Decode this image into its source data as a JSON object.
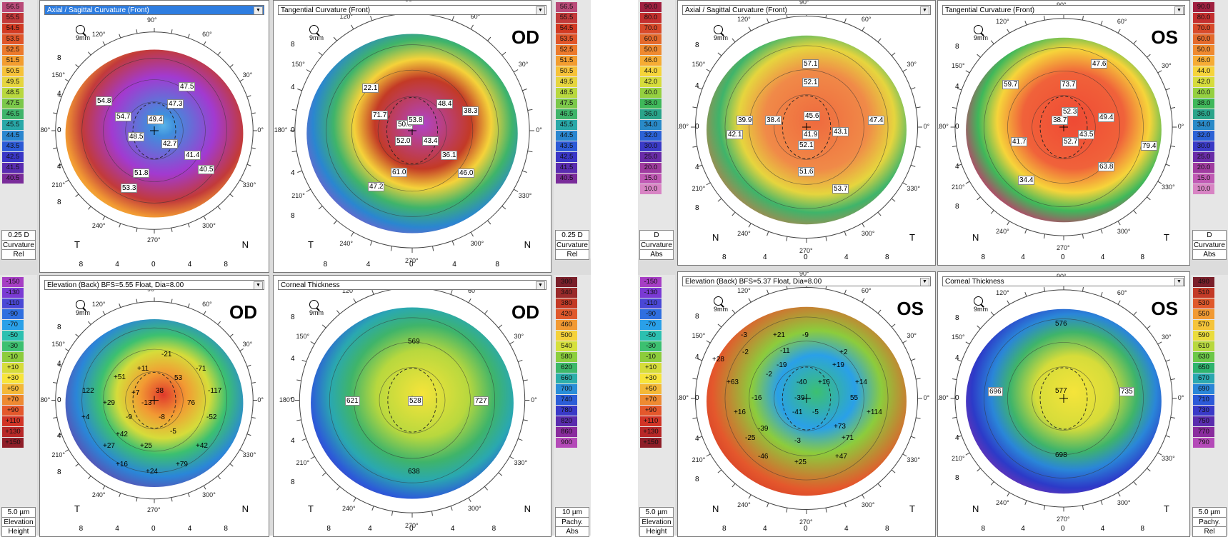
{
  "scales": {
    "curv_od": {
      "labels": [
        "56.5",
        "55.5",
        "54.5",
        "53.5",
        "52.5",
        "51.5",
        "50.5",
        "49.5",
        "48.5",
        "47.5",
        "46.5",
        "45.5",
        "44.5",
        "43.5",
        "42.5",
        "41.5",
        "40.5"
      ],
      "colors": [
        "#b94a78",
        "#c23a3a",
        "#d23a22",
        "#e0562a",
        "#ec7a2c",
        "#f39d2f",
        "#f7c238",
        "#e6d53e",
        "#b8d83e",
        "#7bc84a",
        "#3fb46a",
        "#29a8a8",
        "#2a86d0",
        "#2c5ad6",
        "#3a36c6",
        "#5a2cb0",
        "#7a2c9a"
      ],
      "step": "0.25 D",
      "f1": "Curvature",
      "f2": "Rel"
    },
    "elev_od": {
      "labels": [
        "-150",
        "-130",
        "-110",
        "-90",
        "-70",
        "-50",
        "-30",
        "-10",
        "+10",
        "+30",
        "+50",
        "+70",
        "+90",
        "+110",
        "+130",
        "+150"
      ],
      "colors": [
        "#a63ec4",
        "#7a3ad4",
        "#4a48d6",
        "#2f6fe0",
        "#2aa0e8",
        "#2cc0b0",
        "#3cc070",
        "#8ccc3c",
        "#d6dc3a",
        "#f8e43a",
        "#f4b838",
        "#ee8a32",
        "#e4582c",
        "#d23426",
        "#b82828",
        "#8e1e28"
      ],
      "step": "5.0 µm",
      "f1": "Elevation",
      "f2": "Height"
    },
    "pach_od": {
      "labels": [
        "300",
        "340",
        "380",
        "420",
        "460",
        "500",
        "540",
        "580",
        "620",
        "660",
        "700",
        "740",
        "780",
        "820",
        "860",
        "900"
      ],
      "colors": [
        "#7a1f2a",
        "#9a2a2a",
        "#c33a26",
        "#e0592c",
        "#f29a33",
        "#f5d23a",
        "#d6e03c",
        "#8ccf3e",
        "#3db86a",
        "#2caeaa",
        "#2a8ed8",
        "#2c5ed8",
        "#3a3ac8",
        "#5a2cae",
        "#8a2c9e",
        "#b44ab8"
      ],
      "step": "10 µm",
      "f1": "Pachy.",
      "f2": "Abs"
    },
    "curv_os_l": {
      "labels": [
        "90.0",
        "80.0",
        "70.0",
        "60.0",
        "50.0",
        "46.0",
        "44.0",
        "42.0",
        "40.0",
        "38.0",
        "36.0",
        "34.0",
        "32.0",
        "30.0",
        "25.0",
        "20.0",
        "15.0",
        "10.0"
      ],
      "colors": [
        "#a02040",
        "#c42f2f",
        "#d84a2a",
        "#e46a2c",
        "#ef8a30",
        "#f6ac34",
        "#f6d43a",
        "#d6dc3c",
        "#94d040",
        "#3fb85a",
        "#2aa48a",
        "#2a8ac8",
        "#2c62d6",
        "#3a3ac6",
        "#6a2ca8",
        "#a03ca0",
        "#c05ab4",
        "#d884c4"
      ],
      "step": "D",
      "f1": "Curvature",
      "f2": "Abs"
    },
    "curv_os_r": {
      "labels": [
        "90.0",
        "80.0",
        "70.0",
        "60.0",
        "50.0",
        "46.0",
        "44.0",
        "42.0",
        "40.0",
        "38.0",
        "36.0",
        "34.0",
        "32.0",
        "30.0",
        "25.0",
        "20.0",
        "15.0",
        "10.0"
      ],
      "colors": [
        "#a02040",
        "#c42f2f",
        "#d84a2a",
        "#e46a2c",
        "#ef8a30",
        "#f6ac34",
        "#f6d43a",
        "#d6dc3c",
        "#94d040",
        "#3fb85a",
        "#2aa48a",
        "#2a8ac8",
        "#2c62d6",
        "#3a3ac6",
        "#6a2ca8",
        "#a03ca0",
        "#c05ab4",
        "#d884c4"
      ],
      "step": "D",
      "f1": "Curvature",
      "f2": "Abs"
    },
    "elev_os": {
      "labels": [
        "-150",
        "-130",
        "-110",
        "-90",
        "-70",
        "-50",
        "-30",
        "-10",
        "+10",
        "+30",
        "+50",
        "+70",
        "+90",
        "+110",
        "+130",
        "+150"
      ],
      "colors": [
        "#a63ec4",
        "#7a3ad4",
        "#4a48d6",
        "#2f6fe0",
        "#2aa0e8",
        "#2cc0b0",
        "#3cc070",
        "#8ccc3c",
        "#d6dc3a",
        "#f8e43a",
        "#f4b838",
        "#ee8a32",
        "#e4582c",
        "#d23426",
        "#b82828",
        "#8e1e28"
      ],
      "step": "5.0 µm",
      "f1": "Elevation",
      "f2": "Height"
    },
    "pach_os": {
      "labels": [
        "490",
        "510",
        "530",
        "550",
        "570",
        "590",
        "610",
        "630",
        "650",
        "670",
        "690",
        "710",
        "730",
        "750",
        "770",
        "790"
      ],
      "colors": [
        "#7a1f2a",
        "#c33a26",
        "#e0592c",
        "#f29a33",
        "#f5c43a",
        "#eadc3c",
        "#b8d83e",
        "#6cc848",
        "#2eb46e",
        "#2aa8b0",
        "#2a86d8",
        "#2c5ad8",
        "#3a3ac8",
        "#5a2cae",
        "#8a2c9e",
        "#b44ab8"
      ],
      "step": "5.0 µm",
      "f1": "Pachy.",
      "f2": "Rel"
    }
  },
  "panels": {
    "od_axial": {
      "dropdown": "Axial / Sagittal Curvature (Front)",
      "eye": "",
      "left": "T",
      "right": "N",
      "vals": [
        [
          "54.8",
          "box"
        ],
        [
          "54.7",
          "box"
        ],
        [
          "49.4",
          "box"
        ],
        [
          "47.3",
          "box"
        ],
        [
          "47.5",
          "box"
        ],
        [
          "48.5",
          "box"
        ],
        [
          "42.7",
          "box"
        ],
        [
          "41.4",
          "box"
        ],
        [
          "40.5",
          "box"
        ],
        [
          "51.8",
          "box"
        ],
        [
          "53.3",
          "box"
        ]
      ]
    },
    "od_tang": {
      "dropdown": "Tangential Curvature (Front)",
      "eye": "OD",
      "left": "T",
      "right": "N",
      "vals": [
        [
          "22.1",
          "box"
        ],
        [
          "71.7",
          "box"
        ],
        [
          "50.8",
          "box"
        ],
        [
          "53.8",
          "box"
        ],
        [
          "48.4",
          "box"
        ],
        [
          "38.3",
          "box"
        ],
        [
          "52.0",
          "box"
        ],
        [
          "43.4",
          "box"
        ],
        [
          "36.1",
          "box"
        ],
        [
          "61.0",
          "box"
        ],
        [
          "47.2",
          "box"
        ],
        [
          "46.0",
          "box"
        ]
      ]
    },
    "od_elev": {
      "dropdown": "Elevation (Back)  BFS=5.55 Float, Dia=8.00",
      "eye": "OD",
      "left": "T",
      "right": "N",
      "vals": [
        [
          "-21",
          ""
        ],
        [
          "+11",
          ""
        ],
        [
          "-71",
          ""
        ],
        [
          "+51",
          ""
        ],
        [
          "53",
          ""
        ],
        [
          "122",
          ""
        ],
        [
          "38",
          ""
        ],
        [
          "-117",
          ""
        ],
        [
          "+29",
          ""
        ],
        [
          "-13",
          ""
        ],
        [
          "76",
          ""
        ],
        [
          "+4",
          ""
        ],
        [
          "-9",
          ""
        ],
        [
          "-8",
          ""
        ],
        [
          "-52",
          ""
        ],
        [
          "+42",
          ""
        ],
        [
          "-5",
          ""
        ],
        [
          "+27",
          ""
        ],
        [
          "+25",
          ""
        ],
        [
          "+42",
          ""
        ],
        [
          "+16",
          ""
        ],
        [
          "+24",
          ""
        ],
        [
          "+79",
          ""
        ],
        [
          "+7",
          ""
        ]
      ]
    },
    "od_thick": {
      "dropdown": "Corneal Thickness",
      "eye": "OD",
      "left": "T",
      "right": "N",
      "vals": [
        [
          "569",
          ""
        ],
        [
          "621",
          "box"
        ],
        [
          "528",
          "box"
        ],
        [
          "727",
          "box"
        ],
        [
          "638",
          ""
        ]
      ]
    },
    "os_axial": {
      "dropdown": "Axial / Sagittal Curvature (Front)",
      "eye": "",
      "left": "N",
      "right": "T",
      "vals": [
        [
          "57.1",
          "box"
        ],
        [
          "52.1",
          "box"
        ],
        [
          "39.9",
          "box"
        ],
        [
          "38.4",
          "box"
        ],
        [
          "45.6",
          "box"
        ],
        [
          "47.4",
          "box"
        ],
        [
          "42.1",
          "box"
        ],
        [
          "41.9",
          "box"
        ],
        [
          "43.1",
          "box"
        ],
        [
          "52.1",
          "box"
        ],
        [
          "51.6",
          "box"
        ],
        [
          "53.7",
          "box"
        ]
      ]
    },
    "os_tang": {
      "dropdown": "Tangential Curvature (Front)",
      "eye": "OS",
      "left": "N",
      "right": "T",
      "vals": [
        [
          "47.6",
          "box"
        ],
        [
          "59.7",
          "box"
        ],
        [
          "73.7",
          "box"
        ],
        [
          "38.7",
          "box"
        ],
        [
          "52.3",
          "box"
        ],
        [
          "49.4",
          "box"
        ],
        [
          "41.7",
          "box"
        ],
        [
          "43.5",
          "box"
        ],
        [
          "52.7",
          "box"
        ],
        [
          "79.4",
          "box"
        ],
        [
          "63.8",
          "box"
        ],
        [
          "34.4",
          "box"
        ]
      ]
    },
    "os_elev": {
      "dropdown": "Elevation (Back)  BFS=5.37 Float, Dia=8.00",
      "eye": "OS",
      "left": "N",
      "right": "T",
      "vals": [
        [
          "-3",
          ""
        ],
        [
          "+21",
          ""
        ],
        [
          "-9",
          ""
        ],
        [
          "-2",
          ""
        ],
        [
          "-11",
          ""
        ],
        [
          "+2",
          ""
        ],
        [
          "+28",
          ""
        ],
        [
          "-19",
          ""
        ],
        [
          "+19",
          ""
        ],
        [
          "+63",
          ""
        ],
        [
          "-2",
          ""
        ],
        [
          "-40",
          ""
        ],
        [
          "+16",
          ""
        ],
        [
          "+14",
          ""
        ],
        [
          "-16",
          ""
        ],
        [
          "-39",
          ""
        ],
        [
          "55",
          ""
        ],
        [
          "+16",
          ""
        ],
        [
          "-41",
          ""
        ],
        [
          "-5",
          ""
        ],
        [
          "+114",
          ""
        ],
        [
          "-39",
          ""
        ],
        [
          "+73",
          ""
        ],
        [
          "-25",
          ""
        ],
        [
          "-3",
          ""
        ],
        [
          "+71",
          ""
        ],
        [
          "-46",
          ""
        ],
        [
          "+25",
          ""
        ],
        [
          "+47",
          ""
        ]
      ]
    },
    "os_thick": {
      "dropdown": "Corneal Thickness",
      "eye": "OS",
      "left": "N",
      "right": "T",
      "vals": [
        [
          "576",
          ""
        ],
        [
          "696",
          "box"
        ],
        [
          "577",
          ""
        ],
        [
          "735",
          "box"
        ],
        [
          "698",
          ""
        ]
      ]
    }
  },
  "ticks": {
    "y": [
      "8",
      "4",
      "0",
      "4",
      "8"
    ],
    "x": [
      "8",
      "4",
      "0",
      "4",
      "8"
    ],
    "deg": [
      "90°",
      "60°",
      "30°",
      "0°",
      "330°",
      "300°",
      "270°",
      "240°",
      "210°",
      "180°",
      "150°",
      "120°"
    ]
  },
  "mag_label": "9mm"
}
